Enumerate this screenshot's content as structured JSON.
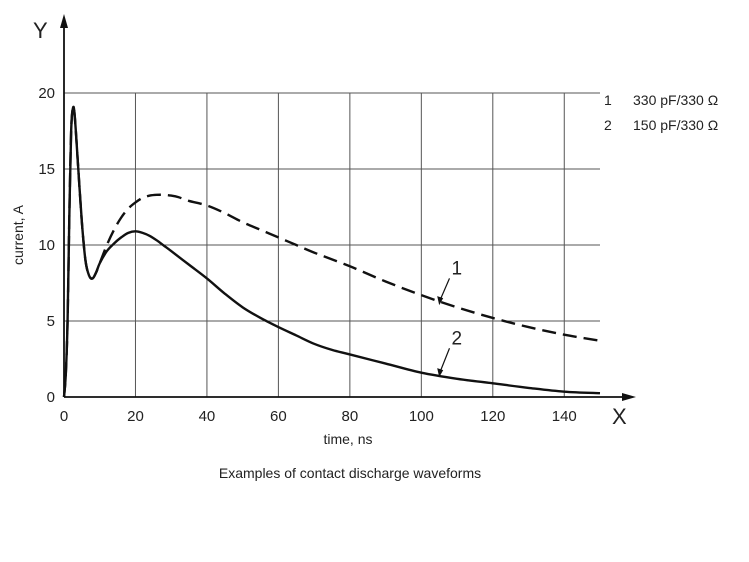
{
  "chart_data": {
    "type": "line",
    "title": "",
    "caption": "Examples of contact discharge waveforms",
    "xlabel": "time, ns",
    "ylabel": "current, A",
    "x_axis_letter": "X",
    "y_axis_letter": "Y",
    "xlim": [
      0,
      150
    ],
    "ylim": [
      0,
      20
    ],
    "x_ticks": [
      0,
      20,
      40,
      60,
      80,
      100,
      120,
      140
    ],
    "y_ticks": [
      0,
      5,
      10,
      15,
      20
    ],
    "grid": true,
    "legend": {
      "placement": "top-right",
      "entries": [
        {
          "id": "1",
          "label": "330 pF/330 Ω"
        },
        {
          "id": "2",
          "label": "150 pF/330 Ω"
        }
      ]
    },
    "series": [
      {
        "id": "1",
        "style": "dashed",
        "color": "#111111",
        "x": [
          0,
          0.5,
          1,
          1.5,
          2,
          2.5,
          3,
          4,
          5,
          6,
          7,
          8,
          9,
          10,
          12,
          14,
          16,
          18,
          20,
          22,
          24,
          26,
          28,
          30,
          32,
          35,
          40,
          45,
          50,
          55,
          60,
          65,
          70,
          80,
          90,
          100,
          110,
          120,
          130,
          140,
          150
        ],
        "y": [
          0,
          1.5,
          5,
          12,
          17.5,
          19,
          18.5,
          15,
          11.5,
          9,
          8,
          7.8,
          8.2,
          8.8,
          10,
          11,
          11.8,
          12.4,
          12.8,
          13.1,
          13.25,
          13.3,
          13.3,
          13.25,
          13.15,
          12.9,
          12.6,
          12.1,
          11.5,
          11.0,
          10.5,
          10.0,
          9.5,
          8.6,
          7.6,
          6.7,
          5.9,
          5.2,
          4.6,
          4.1,
          3.7
        ]
      },
      {
        "id": "2",
        "style": "solid",
        "color": "#111111",
        "x": [
          0,
          0.5,
          1,
          1.5,
          2,
          2.5,
          3,
          4,
          5,
          6,
          7,
          8,
          9,
          10,
          12,
          14,
          16,
          18,
          20,
          22,
          24,
          26,
          28,
          30,
          35,
          40,
          45,
          50,
          55,
          60,
          65,
          70,
          75,
          80,
          90,
          100,
          110,
          120,
          130,
          140,
          150
        ],
        "y": [
          0,
          1.5,
          5,
          12,
          17.5,
          19,
          18.5,
          15,
          11.5,
          9,
          8,
          7.8,
          8.2,
          8.8,
          9.6,
          10.1,
          10.5,
          10.8,
          10.9,
          10.8,
          10.6,
          10.3,
          9.95,
          9.6,
          8.7,
          7.8,
          6.8,
          5.9,
          5.2,
          4.6,
          4.05,
          3.5,
          3.1,
          2.8,
          2.2,
          1.6,
          1.2,
          0.9,
          0.6,
          0.35,
          0.25
        ]
      }
    ],
    "annotations": [
      {
        "label": "1",
        "series": "1",
        "x": 109,
        "y": 8.2
      },
      {
        "label": "2",
        "series": "2",
        "x": 109,
        "y": 3.6
      }
    ]
  }
}
